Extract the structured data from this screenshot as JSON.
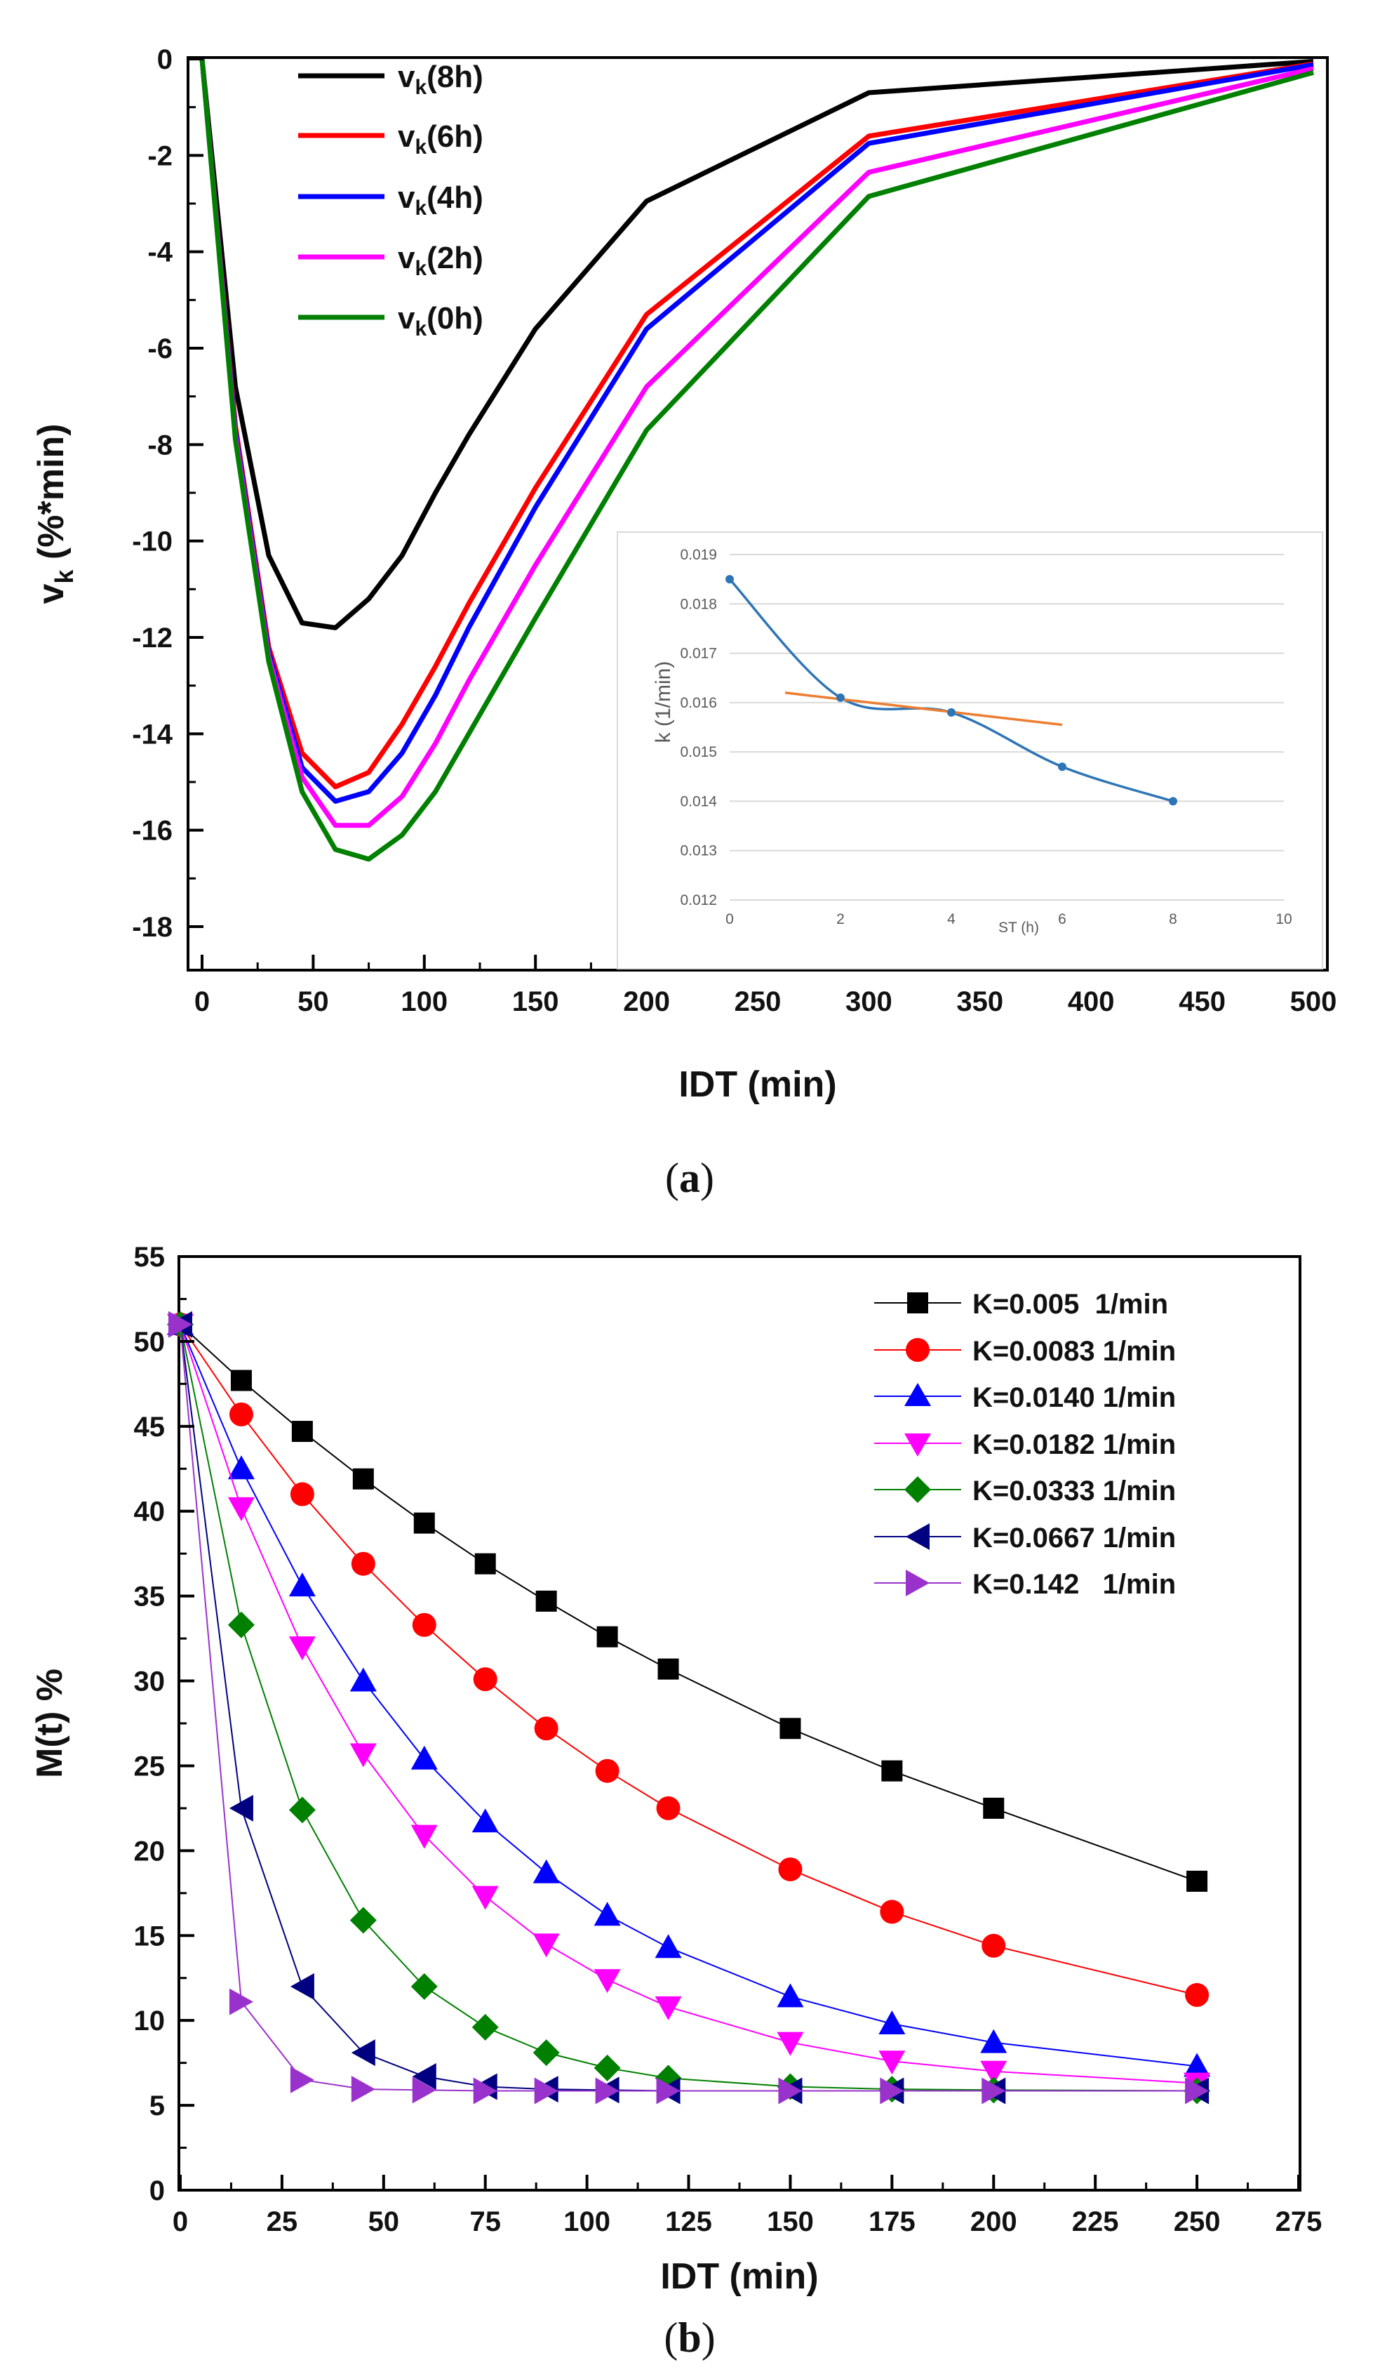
{
  "chart_data": [
    {
      "panel": "a",
      "panel_label_open": "(",
      "panel_label_letter": "a",
      "panel_label_close": ")",
      "type": "line",
      "xlabel": "IDT (min)",
      "ylabel_main": "v",
      "ylabel_sub": "k",
      "ylabel_rest": " (%*min)",
      "xlim": [
        0,
        500
      ],
      "ylim": [
        -18,
        0
      ],
      "xticks": [
        0,
        50,
        100,
        150,
        200,
        250,
        300,
        350,
        400,
        450,
        500
      ],
      "yticks": [
        0,
        -2,
        -4,
        -6,
        -8,
        -10,
        -12,
        -14,
        -16,
        -18
      ],
      "x": [
        0,
        15,
        30,
        45,
        60,
        75,
        90,
        105,
        120,
        150,
        200,
        300,
        500
      ],
      "series": [
        {
          "name": "vk(8h)",
          "label_main": "v",
          "label_sub": "k",
          "label_rest": "(8h)",
          "color": "#000000",
          "values": [
            0,
            -6.8,
            -10.3,
            -11.7,
            -11.8,
            -11.2,
            -10.3,
            -9.0,
            -7.8,
            -5.6,
            -2.95,
            -0.7,
            -0.05
          ]
        },
        {
          "name": "vk(6h)",
          "label_main": "v",
          "label_sub": "k",
          "label_rest": "(6h)",
          "color": "#ff0000",
          "values": [
            0,
            -7.6,
            -12.2,
            -14.4,
            -15.1,
            -14.8,
            -13.8,
            -12.6,
            -11.3,
            -8.9,
            -5.3,
            -1.6,
            -0.1
          ]
        },
        {
          "name": "vk(4h)",
          "label_main": "v",
          "label_sub": "k",
          "label_rest": "(4h)",
          "color": "#0000ff",
          "values": [
            0,
            -7.7,
            -12.3,
            -14.7,
            -15.4,
            -15.2,
            -14.4,
            -13.2,
            -11.8,
            -9.3,
            -5.6,
            -1.75,
            -0.12
          ]
        },
        {
          "name": "vk(2h)",
          "label_main": "v",
          "label_sub": "k",
          "label_rest": "(2h)",
          "color": "#ff00ff",
          "values": [
            0,
            -7.8,
            -12.4,
            -14.9,
            -15.9,
            -15.9,
            -15.3,
            -14.2,
            -12.9,
            -10.5,
            -6.8,
            -2.35,
            -0.2
          ]
        },
        {
          "name": "vk(0h)",
          "label_main": "v",
          "label_sub": "k",
          "label_rest": "(0h)",
          "color": "#008000",
          "values": [
            0,
            -7.9,
            -12.5,
            -15.2,
            -16.4,
            -16.6,
            -16.1,
            -15.2,
            -14.0,
            -11.6,
            -7.7,
            -2.85,
            -0.28
          ]
        }
      ],
      "legend_position": "top-left",
      "inset": {
        "type": "line",
        "xlabel": "ST (h)",
        "ylabel": "k (1/min)",
        "xlim": [
          0,
          10
        ],
        "ylim": [
          0.012,
          0.019
        ],
        "xticks": [
          0,
          2,
          4,
          6,
          8,
          10
        ],
        "yticks": [
          "0.012",
          "0.013",
          "0.014",
          "0.015",
          "0.016",
          "0.017",
          "0.018",
          "0.019"
        ],
        "grid": "horizontal",
        "data": {
          "name": "k",
          "color": "#2e75b6",
          "x": [
            0,
            2,
            4,
            6,
            8
          ],
          "y": [
            0.0185,
            0.0161,
            0.0158,
            0.0147,
            0.014
          ]
        },
        "trend": {
          "name": "linear fit",
          "color": "#ed7d31",
          "x": [
            1,
            6
          ],
          "y": [
            0.0162,
            0.01555
          ]
        }
      }
    },
    {
      "panel": "b",
      "panel_label_open": "(",
      "panel_label_letter": "b",
      "panel_label_close": ")",
      "type": "line",
      "xlabel": "IDT (min)",
      "ylabel": "M(t) %",
      "xlim": [
        0,
        275
      ],
      "ylim": [
        0,
        55
      ],
      "xticks": [
        0,
        25,
        50,
        75,
        100,
        125,
        150,
        175,
        200,
        225,
        250,
        275
      ],
      "yticks": [
        0,
        5,
        10,
        15,
        20,
        25,
        30,
        35,
        40,
        45,
        50,
        55
      ],
      "legend_position": "top-right",
      "series": [
        {
          "name": "K=0.005  1/min",
          "color": "#000000",
          "marker": "square",
          "x": [
            0,
            15,
            30,
            45,
            60,
            75,
            90,
            105,
            120,
            150,
            175,
            200,
            250
          ],
          "values": [
            51.0,
            47.7,
            44.7,
            41.9,
            39.3,
            36.9,
            34.7,
            32.6,
            30.7,
            27.2,
            24.7,
            22.5,
            18.2
          ]
        },
        {
          "name": "K=0.0083 1/min",
          "color": "#ff0000",
          "marker": "circle",
          "x": [
            0,
            15,
            30,
            45,
            60,
            75,
            90,
            105,
            120,
            150,
            175,
            200,
            250
          ],
          "values": [
            51.0,
            45.7,
            41.0,
            36.9,
            33.3,
            30.1,
            27.2,
            24.7,
            22.5,
            18.9,
            16.4,
            14.4,
            11.5
          ]
        },
        {
          "name": "K=0.0140 1/min",
          "color": "#0000ff",
          "marker": "triangle-up",
          "x": [
            0,
            15,
            30,
            45,
            60,
            75,
            90,
            105,
            120,
            150,
            175,
            200,
            250
          ],
          "values": [
            51.0,
            42.5,
            35.6,
            30.0,
            25.4,
            21.7,
            18.7,
            16.2,
            14.3,
            11.4,
            9.8,
            8.7,
            7.3
          ]
        },
        {
          "name": "K=0.0182 1/min",
          "color": "#ff00ff",
          "marker": "triangle-down",
          "x": [
            0,
            15,
            30,
            45,
            60,
            75,
            90,
            105,
            120,
            150,
            175,
            200,
            250
          ],
          "values": [
            51.0,
            40.2,
            32.0,
            25.7,
            20.9,
            17.3,
            14.5,
            12.4,
            10.8,
            8.7,
            7.6,
            7.0,
            6.3
          ]
        },
        {
          "name": "K=0.0333 1/min",
          "color": "#008000",
          "marker": "diamond",
          "x": [
            0,
            15,
            30,
            45,
            60,
            75,
            90,
            105,
            120,
            150,
            175,
            200,
            250
          ],
          "values": [
            51.0,
            33.3,
            22.4,
            15.9,
            12.0,
            9.6,
            8.1,
            7.2,
            6.6,
            6.1,
            5.95,
            5.9,
            5.85
          ]
        },
        {
          "name": "K=0.0667 1/min",
          "color": "#000080",
          "marker": "triangle-left",
          "x": [
            0,
            15,
            30,
            45,
            60,
            75,
            90,
            105,
            120,
            150,
            175,
            200,
            250
          ],
          "values": [
            51.0,
            22.5,
            12.0,
            8.1,
            6.7,
            6.1,
            5.95,
            5.9,
            5.85,
            5.85,
            5.85,
            5.85,
            5.85
          ]
        },
        {
          "name": "K=0.142   1/min",
          "color": "#9932cc",
          "marker": "triangle-right",
          "x": [
            0,
            15,
            30,
            45,
            60,
            75,
            90,
            105,
            120,
            150,
            175,
            200,
            250
          ],
          "values": [
            51.0,
            11.1,
            6.5,
            5.95,
            5.9,
            5.85,
            5.85,
            5.85,
            5.85,
            5.85,
            5.85,
            5.85,
            5.85
          ]
        }
      ]
    }
  ]
}
